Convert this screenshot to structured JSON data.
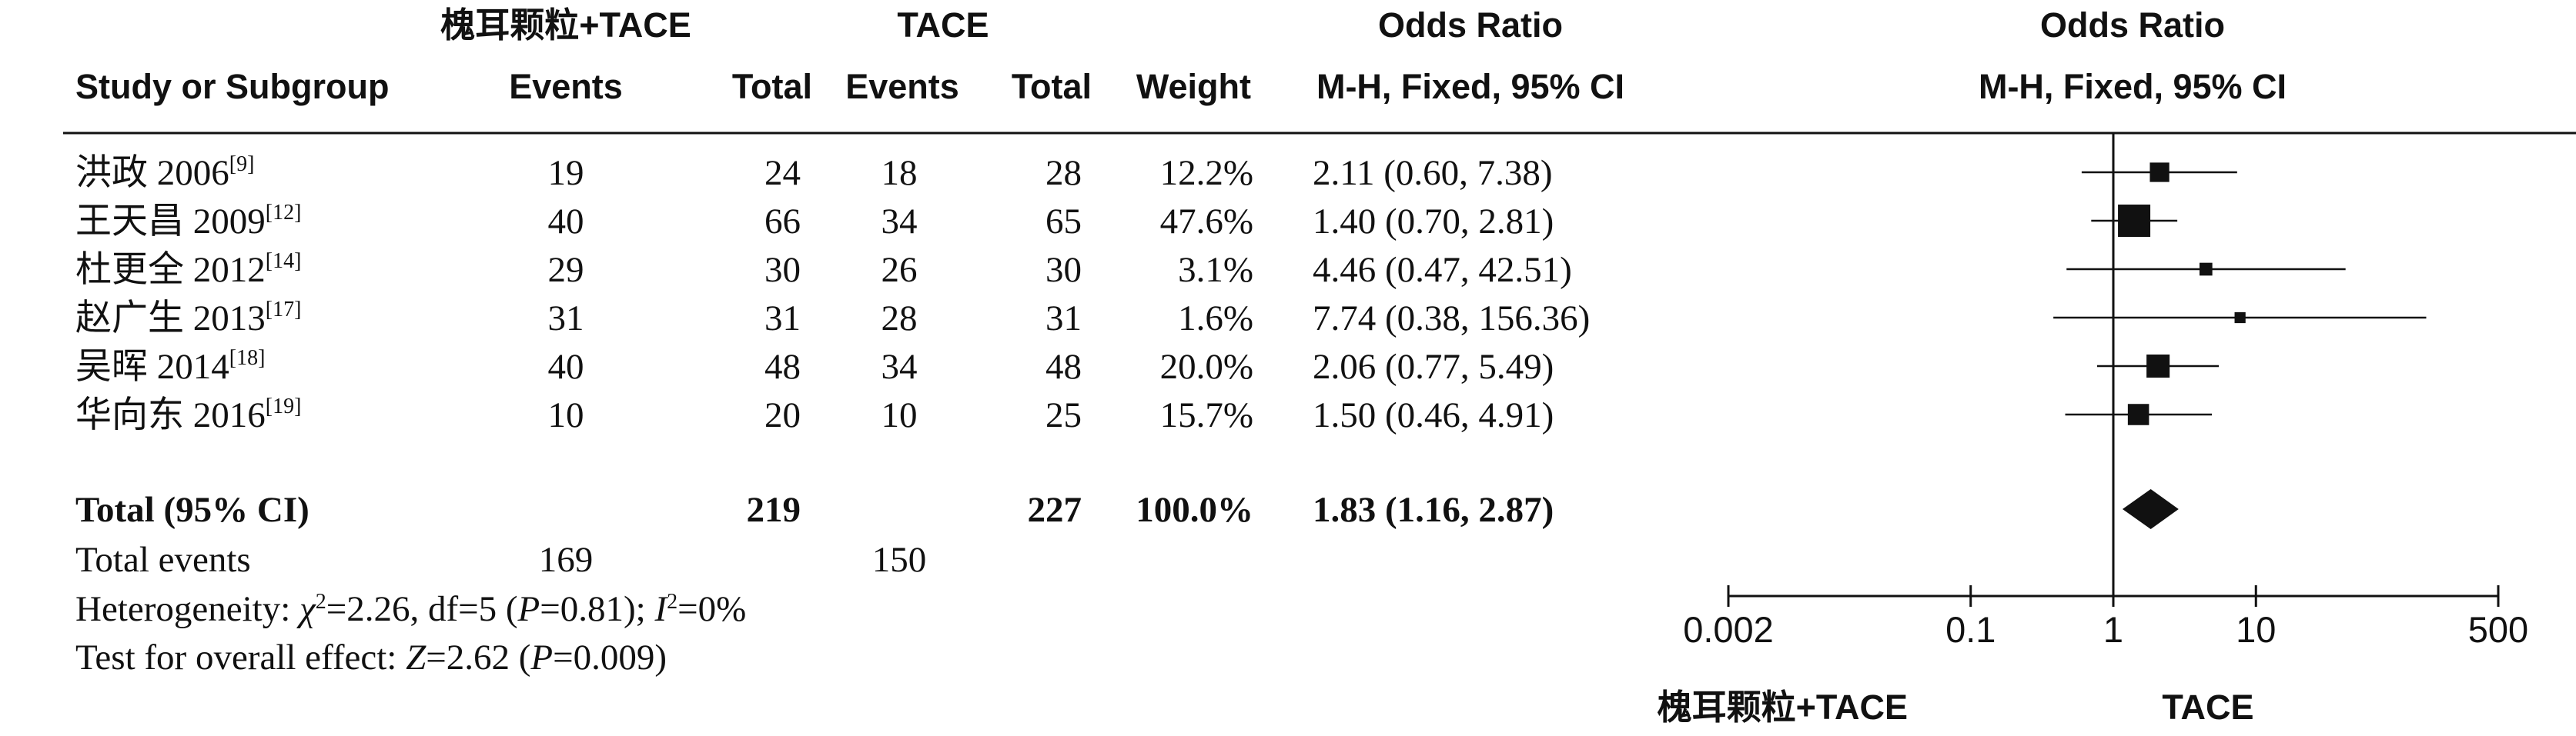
{
  "chart_data": {
    "type": "forest",
    "columns": {
      "study_header": "Study or Subgroup",
      "group1_name": "槐耳颗粒+TACE",
      "group2_name": "TACE",
      "events_label": "Events",
      "total_label": "Total",
      "weight_label": "Weight",
      "or_title": "Odds Ratio",
      "or_method": "M-H, Fixed, 95% CI",
      "plot_title": "Odds Ratio",
      "plot_method": "M-H, Fixed, 95% CI"
    },
    "studies": [
      {
        "name": "洪政 2006",
        "ref": "[9]",
        "e1": "19",
        "t1": "24",
        "e2": "18",
        "t2": "28",
        "weight": "12.2%",
        "ci_text": "2.11 (0.60, 7.38)",
        "or": 2.11,
        "low": 0.6,
        "high": 7.38,
        "w": 12.2
      },
      {
        "name": "王天昌 2009",
        "ref": "[12]",
        "e1": "40",
        "t1": "66",
        "e2": "34",
        "t2": "65",
        "weight": "47.6%",
        "ci_text": "1.40 (0.70, 2.81)",
        "or": 1.4,
        "low": 0.7,
        "high": 2.81,
        "w": 47.6
      },
      {
        "name": "杜更全 2012",
        "ref": "[14]",
        "e1": "29",
        "t1": "30",
        "e2": "26",
        "t2": "30",
        "weight": "3.1%",
        "ci_text": "4.46 (0.47, 42.51)",
        "or": 4.46,
        "low": 0.47,
        "high": 42.51,
        "w": 3.1
      },
      {
        "name": "赵广生 2013",
        "ref": "[17]",
        "e1": "31",
        "t1": "31",
        "e2": "28",
        "t2": "31",
        "weight": "1.6%",
        "ci_text": "7.74 (0.38, 156.36)",
        "or": 7.74,
        "low": 0.38,
        "high": 156.36,
        "w": 1.6
      },
      {
        "name": "吴晖 2014",
        "ref": "[18]",
        "e1": "40",
        "t1": "48",
        "e2": "34",
        "t2": "48",
        "weight": "20.0%",
        "ci_text": "2.06 (0.77, 5.49)",
        "or": 2.06,
        "low": 0.77,
        "high": 5.49,
        "w": 20.0
      },
      {
        "name": "华向东 2016",
        "ref": "[19]",
        "e1": "10",
        "t1": "20",
        "e2": "10",
        "t2": "25",
        "weight": "15.7%",
        "ci_text": "1.50 (0.46, 4.91)",
        "or": 1.5,
        "low": 0.46,
        "high": 4.91,
        "w": 15.7
      }
    ],
    "total": {
      "label": "Total (95% CI)",
      "t1": "219",
      "t2": "227",
      "weight": "100.0%",
      "ci_text": "1.83 (1.16, 2.87)",
      "or": 1.83,
      "low": 1.16,
      "high": 2.87
    },
    "total_events": {
      "label": "Total events",
      "e1": "169",
      "e2": "150"
    },
    "heterogeneity": {
      "prefix": "Heterogeneity: ",
      "chi_sym": "χ",
      "chi_val": "=2.26, df=5 (",
      "p_sym": "P",
      "p_val": "=0.81); ",
      "i_sym": "I",
      "i_val": "=0%"
    },
    "overall_effect": {
      "prefix": "Test for overall effect: ",
      "z_sym": "Z",
      "z_val": "=2.62 (",
      "p_sym": "P",
      "p_val": "=0.009)"
    },
    "axis": {
      "scale": "log",
      "ticks": [
        0.002,
        0.1,
        1,
        10,
        500
      ],
      "tick_labels": [
        "0.002",
        "0.1",
        "1",
        "10",
        "500"
      ],
      "range": [
        0.002,
        500
      ]
    },
    "favours": {
      "left": "槐耳颗粒+TACE",
      "right": "TACE"
    }
  }
}
